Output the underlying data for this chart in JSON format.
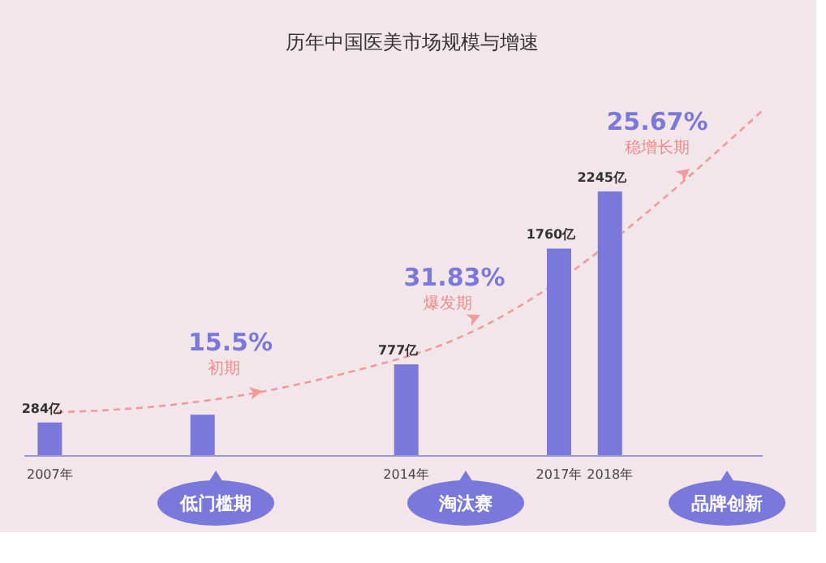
{
  "chart_data": {
    "type": "bar",
    "title": "历年中国医美市场规模与增速",
    "x": [
      2007,
      2010,
      2014,
      2017,
      2018
    ],
    "xlim": [
      2006.5,
      2021
    ],
    "xticks": [
      {
        "value": 2007,
        "label": "2007年"
      },
      {
        "value": 2014,
        "label": "2014年"
      },
      {
        "value": 2017,
        "label": "2017年"
      },
      {
        "value": 2018,
        "label": "2018年"
      }
    ],
    "values": [
      284,
      350,
      777,
      1760,
      2245
    ],
    "value_labels": [
      "284亿",
      null,
      "777亿",
      "1760亿",
      "2245亿"
    ],
    "color": "#7b78dc",
    "tick_labels": "x",
    "annotations": [
      "15.5%",
      "初期",
      "31.83%",
      "爆发期",
      "25.67%",
      "稳增长期",
      "低门槛期",
      "淘汰赛",
      "品牌创新"
    ]
  }
}
